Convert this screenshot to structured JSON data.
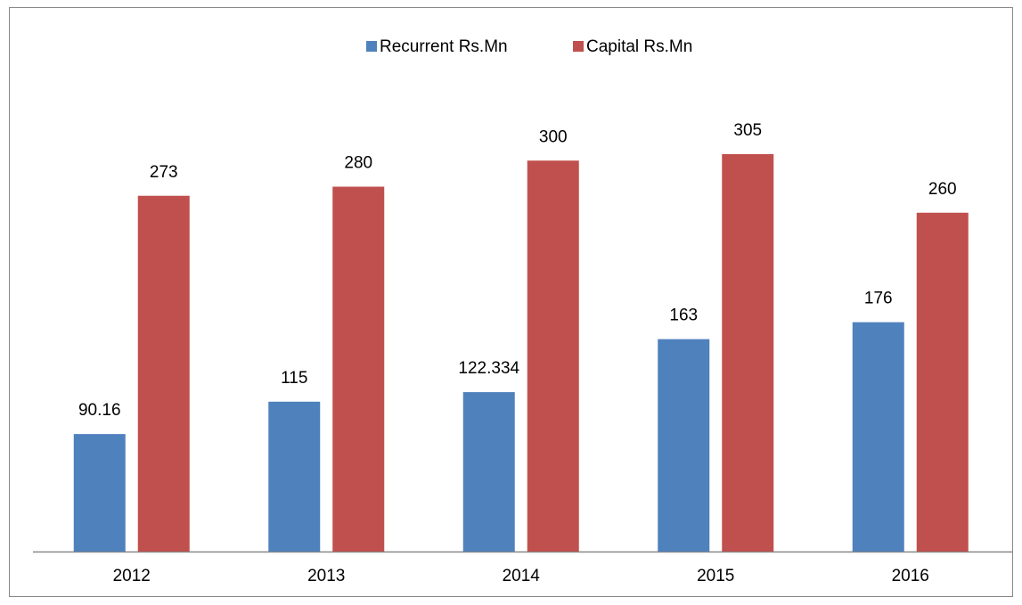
{
  "chart_data": {
    "type": "bar",
    "categories": [
      "2012",
      "2013",
      "2014",
      "2015",
      "2016"
    ],
    "series": [
      {
        "name": "Recurrent Rs.Mn",
        "color": "#4f81bd",
        "values": [
          90.16,
          115,
          122.334,
          163,
          176
        ]
      },
      {
        "name": "Capital Rs.Mn",
        "color": "#c0504d",
        "values": [
          273,
          280,
          300,
          305,
          260
        ]
      }
    ],
    "legend": "top"
  }
}
